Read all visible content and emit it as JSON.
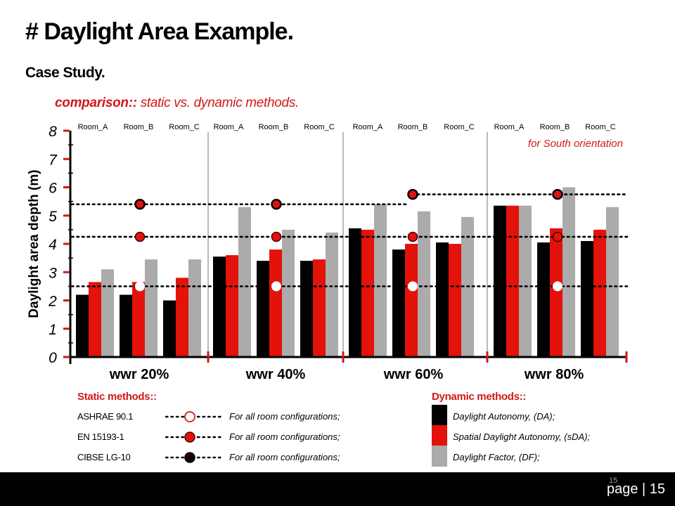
{
  "title": "# Daylight Area Example.",
  "subtitle": "Case Study.",
  "comparison_prefix": "comparison::",
  "comparison_rest": "static vs. dynamic methods.",
  "colors": {
    "accent": "#d0191a",
    "da": "#000000",
    "sda": "#e3120b",
    "df": "#ababab"
  },
  "chart_data": {
    "type": "bar",
    "ylabel": "Daylight area depth (m)",
    "ylim": [
      0,
      8
    ],
    "yticks": [
      "0",
      "1",
      "2",
      "3",
      "4",
      "5",
      "6",
      "7",
      "8"
    ],
    "annotation": "for South orientation",
    "groups": [
      "wwr 20%",
      "wwr 40%",
      "wwr 60%",
      "wwr 80%"
    ],
    "rooms": [
      "Room_A",
      "Room_B",
      "Room_C"
    ],
    "series": [
      {
        "name": "Daylight Autonomy, (DA);",
        "color": "#000000",
        "values": [
          2.2,
          2.2,
          2.0,
          3.55,
          3.4,
          3.4,
          4.55,
          3.8,
          4.05,
          5.35,
          4.05,
          4.1
        ]
      },
      {
        "name": "Spatial Daylight Autonomy, (sDA);",
        "color": "#e3120b",
        "values": [
          2.65,
          2.65,
          2.8,
          3.6,
          3.8,
          3.45,
          4.5,
          4.0,
          4.0,
          5.35,
          4.55,
          4.5
        ]
      },
      {
        "name": "Daylight Factor, (DF);",
        "color": "#ababab",
        "values": [
          3.1,
          3.45,
          3.45,
          5.3,
          4.5,
          4.4,
          5.4,
          5.15,
          4.95,
          5.35,
          6.0,
          5.3
        ]
      }
    ],
    "reference_lines": [
      {
        "name": "ASHRAE 90.1",
        "value": 2.5,
        "markers": [
          2.5,
          2.5,
          2.5,
          2.5
        ]
      },
      {
        "name": "EN 15193-1",
        "value": 4.25,
        "markers": [
          4.25,
          4.25,
          4.25,
          4.25
        ]
      },
      {
        "name": "CIBSE LG-10",
        "value_left": 5.4,
        "value_right": 5.75,
        "markers": [
          5.4,
          5.4,
          5.75,
          5.75
        ]
      }
    ]
  },
  "legend": {
    "static_title": "Static methods::",
    "dynamic_title": "Dynamic methods::",
    "static": [
      {
        "method": "ASHRAE 90.1",
        "desc": "For all room configurations;"
      },
      {
        "method": "EN 15193-1",
        "desc": "For all room configurations;"
      },
      {
        "method": "CIBSE LG-10",
        "desc": "For all room configurations;"
      }
    ],
    "dynamic": [
      {
        "desc": "Daylight Autonomy, (DA);"
      },
      {
        "desc": "Spatial Daylight Autonomy, (sDA);"
      },
      {
        "desc": "Daylight Factor, (DF);"
      }
    ]
  },
  "footer": {
    "page_label": "page | 15",
    "slide_number": "15"
  }
}
